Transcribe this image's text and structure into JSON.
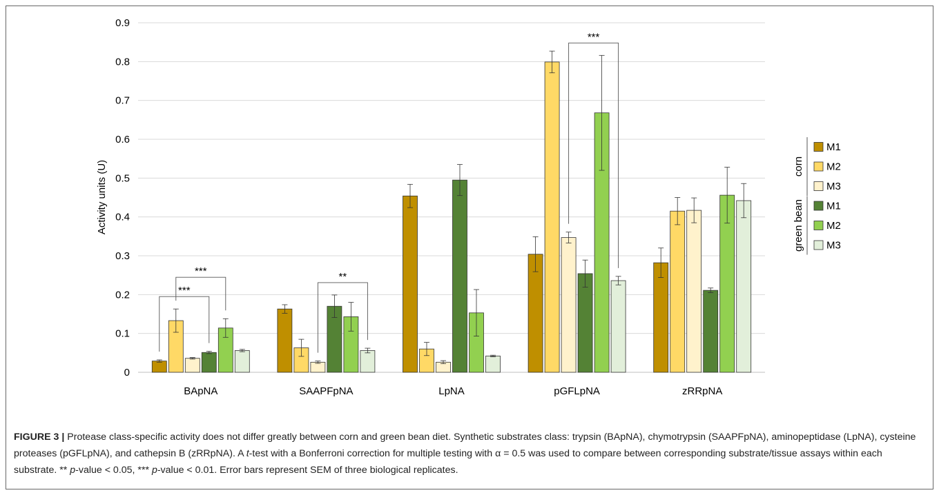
{
  "chart_data": {
    "type": "bar",
    "categories": [
      "BApNA",
      "SAAPFpNA",
      "LpNA",
      "pGFLpNA",
      "zRRpNA"
    ],
    "ylabel": "Activity units (U)",
    "ylim": [
      0,
      0.9
    ],
    "yticks": [
      "0",
      "0.1",
      "0.2",
      "0.3",
      "0.4",
      "0.5",
      "0.6",
      "0.7",
      "0.8",
      "0.9"
    ],
    "grid": true,
    "legend_position": "right",
    "legend_groups": [
      {
        "label": "corn",
        "series": [
          0,
          1,
          2
        ]
      },
      {
        "label": "green bean",
        "series": [
          3,
          4,
          5
        ]
      }
    ],
    "series": [
      {
        "name": "M1",
        "color": "#BF8F00",
        "values": [
          0.029,
          0.163,
          0.454,
          0.304,
          0.282
        ],
        "err": [
          0.003,
          0.011,
          0.03,
          0.045,
          0.038
        ]
      },
      {
        "name": "M2",
        "color": "#FFD966",
        "values": [
          0.133,
          0.063,
          0.06,
          0.799,
          0.415
        ],
        "err": [
          0.03,
          0.022,
          0.017,
          0.028,
          0.035
        ]
      },
      {
        "name": "M3",
        "color": "#FFF2CC",
        "values": [
          0.036,
          0.026,
          0.026,
          0.347,
          0.417
        ],
        "err": [
          0.002,
          0.003,
          0.004,
          0.014,
          0.032
        ]
      },
      {
        "name": "M1",
        "color": "#548235",
        "values": [
          0.051,
          0.17,
          0.495,
          0.254,
          0.211
        ],
        "err": [
          0.003,
          0.029,
          0.04,
          0.035,
          0.006
        ]
      },
      {
        "name": "M2",
        "color": "#92D050",
        "values": [
          0.114,
          0.143,
          0.153,
          0.668,
          0.456
        ],
        "err": [
          0.024,
          0.037,
          0.06,
          0.148,
          0.072
        ]
      },
      {
        "name": "M3",
        "color": "#E2EFDA",
        "values": [
          0.056,
          0.056,
          0.042,
          0.236,
          0.442
        ],
        "err": [
          0.003,
          0.006,
          0.002,
          0.011,
          0.044
        ]
      }
    ],
    "significance": [
      {
        "category": 0,
        "from_series": 0,
        "to_series": 3,
        "label": "***"
      },
      {
        "category": 0,
        "from_series": 1,
        "to_series": 4,
        "label": "***"
      },
      {
        "category": 1,
        "from_series": 2,
        "to_series": 5,
        "label": "**"
      },
      {
        "category": 3,
        "from_series": 2,
        "to_series": 5,
        "label": "***"
      }
    ]
  },
  "caption": {
    "label": "FIGURE 3 |",
    "part1": " Protease class-specific activity does not differ greatly between corn and green bean diet. Synthetic substrates class: trypsin (BApNA), chymotrypsin (SAAPFpNA), aminopeptidase (LpNA), cysteine proteases (pGFLpNA), and cathepsin B (zRRpNA). A ",
    "t": "t",
    "part2": "-test with a Bonferroni correction for multiple testing with α = 0.5 was used to compare between corresponding substrate/tissue assays within each substrate. ** ",
    "p1": "p",
    "part3": "-value < 0.05, *** ",
    "p2": "p",
    "part4": "-value < 0.01. Error bars represent SEM of three biological replicates."
  }
}
